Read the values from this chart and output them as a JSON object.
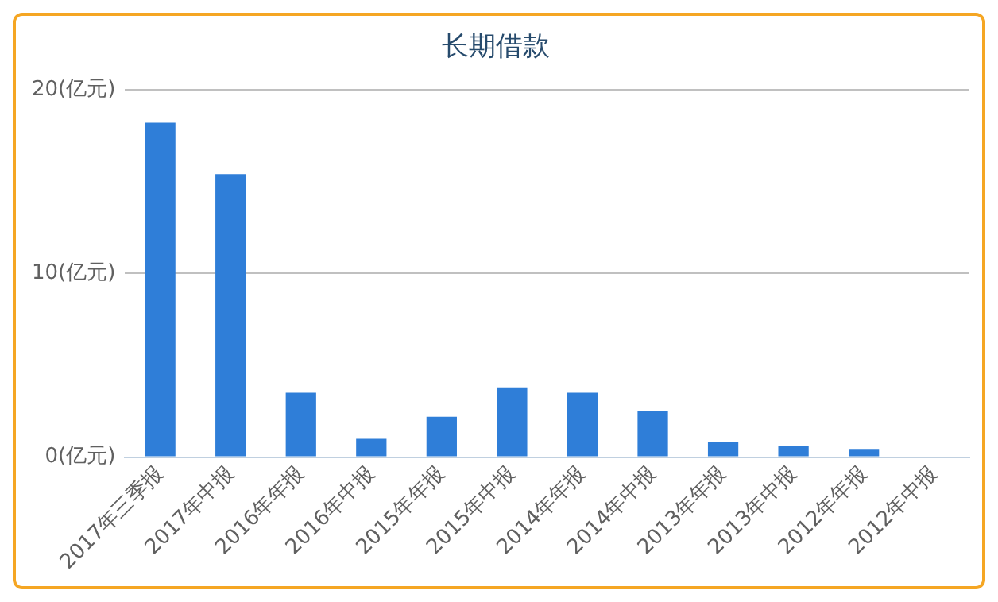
{
  "chart_data": {
    "type": "bar",
    "title": "长期借款",
    "categories": [
      "2017年三季报",
      "2017年中报",
      "2016年年报",
      "2016年中报",
      "2015年年报",
      "2015年中报",
      "2014年年报",
      "2014年中报",
      "2013年年报",
      "2013年中报",
      "2012年年报",
      "2012年中报"
    ],
    "values": [
      18.2,
      15.4,
      3.5,
      1.0,
      2.2,
      3.8,
      3.5,
      2.5,
      0.8,
      0.6,
      0.45,
      0
    ],
    "color": "#2f7ed8",
    "ylim": [
      0,
      20
    ],
    "yticks": [
      {
        "value": 0,
        "label": "0(亿元)"
      },
      {
        "value": 10,
        "label": "10(亿元)"
      },
      {
        "value": 20,
        "label": "20(亿元)"
      }
    ],
    "grid": "y",
    "legend": false
  }
}
